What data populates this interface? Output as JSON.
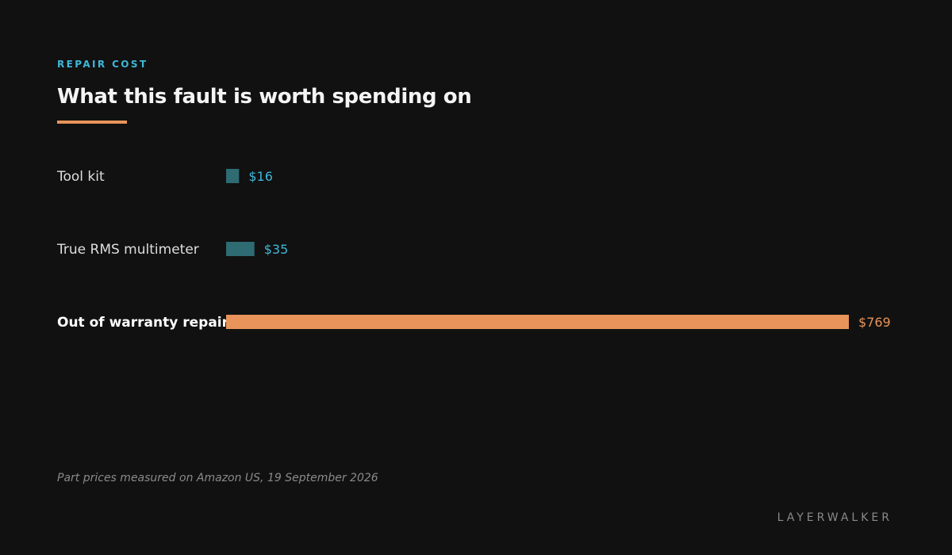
{
  "header": {
    "kicker": "REPAIR COST",
    "title": "What this fault is worth spending on"
  },
  "footer": {
    "source": "Part prices measured on Amazon US, 19 September 2026",
    "brand": "LAYERWALKER"
  },
  "colors": {
    "accent": "#3fb6d8",
    "normal_bar": "#2e6b72",
    "highlight_bar": "#e8945a",
    "background": "#111111"
  },
  "chart_data": {
    "type": "bar",
    "orientation": "horizontal",
    "categories": [
      "Tool kit",
      "True RMS multimeter",
      "Out of warranty repair"
    ],
    "values": [
      16,
      35,
      769
    ],
    "value_labels": [
      "$16",
      "$35",
      "$769"
    ],
    "highlight": [
      false,
      false,
      true
    ],
    "unit": "USD",
    "title": "What this fault is worth spending on",
    "xlabel": "",
    "ylabel": "",
    "grid": false,
    "legend": "none"
  }
}
